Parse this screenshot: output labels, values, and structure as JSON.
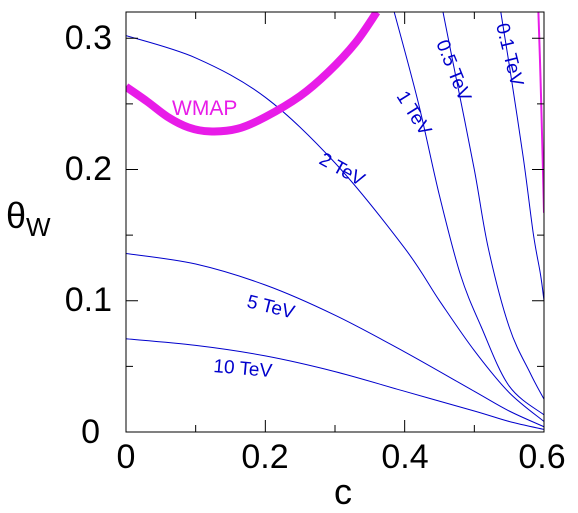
{
  "chart_data": {
    "type": "line",
    "xlabel": "c",
    "ylabel": "θW",
    "xlim": [
      0,
      0.6
    ],
    "ylim": [
      0,
      0.32
    ],
    "x_ticks": [
      "0",
      "0.2",
      "0.4",
      "0.6"
    ],
    "y_ticks": [
      "0",
      "0.1",
      "0.2",
      "0.3"
    ],
    "grid": false,
    "colors": {
      "contours": "#0000cc",
      "wmap": "#e81ce8"
    },
    "series": [
      {
        "name": "10 TeV",
        "points": [
          [
            0,
            0.071
          ],
          [
            0.1,
            0.066
          ],
          [
            0.2,
            0.058
          ],
          [
            0.3,
            0.046
          ],
          [
            0.4,
            0.031
          ],
          [
            0.5,
            0.016
          ],
          [
            0.55,
            0.008
          ],
          [
            0.6,
            0.002
          ]
        ]
      },
      {
        "name": "5 TeV",
        "points": [
          [
            0,
            0.136
          ],
          [
            0.1,
            0.128
          ],
          [
            0.2,
            0.112
          ],
          [
            0.3,
            0.089
          ],
          [
            0.4,
            0.061
          ],
          [
            0.5,
            0.031
          ],
          [
            0.55,
            0.016
          ],
          [
            0.6,
            0.004
          ]
        ]
      },
      {
        "name": "2 TeV",
        "points": [
          [
            0,
            0.302
          ],
          [
            0.1,
            0.285
          ],
          [
            0.2,
            0.255
          ],
          [
            0.3,
            0.205
          ],
          [
            0.4,
            0.14
          ],
          [
            0.45,
            0.1
          ],
          [
            0.5,
            0.062
          ],
          [
            0.55,
            0.03
          ],
          [
            0.6,
            0.008
          ]
        ]
      },
      {
        "name": "1 TeV",
        "points": [
          [
            0.385,
            0.32
          ],
          [
            0.42,
            0.25
          ],
          [
            0.45,
            0.18
          ],
          [
            0.48,
            0.12
          ],
          [
            0.51,
            0.08
          ],
          [
            0.55,
            0.035
          ],
          [
            0.6,
            0.013
          ]
        ]
      },
      {
        "name": "0.5 TeV",
        "points": [
          [
            0.455,
            0.32
          ],
          [
            0.47,
            0.28
          ],
          [
            0.5,
            0.2
          ],
          [
            0.52,
            0.14
          ],
          [
            0.55,
            0.08
          ],
          [
            0.58,
            0.045
          ],
          [
            0.6,
            0.025
          ]
        ]
      },
      {
        "name": "0.1 TeV",
        "points": [
          [
            0.538,
            0.32
          ],
          [
            0.55,
            0.28
          ],
          [
            0.57,
            0.21
          ],
          [
            0.585,
            0.15
          ],
          [
            0.595,
            0.12
          ],
          [
            0.6,
            0.1
          ]
        ]
      },
      {
        "name": "WMAP",
        "points": [
          [
            0,
            0.263
          ],
          [
            0.03,
            0.252
          ],
          [
            0.06,
            0.24
          ],
          [
            0.09,
            0.232
          ],
          [
            0.12,
            0.229
          ],
          [
            0.16,
            0.231
          ],
          [
            0.2,
            0.24
          ],
          [
            0.25,
            0.256
          ],
          [
            0.29,
            0.274
          ],
          [
            0.33,
            0.297
          ],
          [
            0.36,
            0.32
          ]
        ]
      },
      {
        "name": "WMAP",
        "points": [
          [
            0.592,
            0.32
          ],
          [
            0.595,
            0.27
          ],
          [
            0.598,
            0.21
          ],
          [
            0.6,
            0.167
          ]
        ]
      }
    ],
    "annotations": [
      "WMAP",
      "2 TeV",
      "5 TeV",
      "10 TeV",
      "1 TeV",
      "0.5 TeV",
      "0.1 TeV"
    ]
  }
}
